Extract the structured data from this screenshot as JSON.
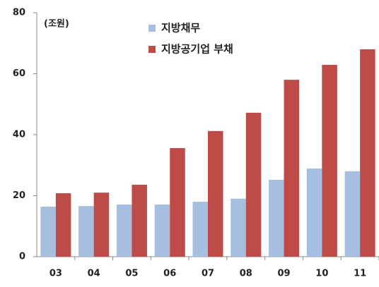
{
  "chart_data": {
    "type": "bar",
    "annotation": "(조원)",
    "categories": [
      "03",
      "04",
      "05",
      "06",
      "07",
      "08",
      "09",
      "10",
      "11"
    ],
    "series": [
      {
        "name": "지방채무",
        "color": "#a6bedf",
        "values": [
          16.4,
          16.6,
          17.1,
          17.1,
          18.0,
          19.0,
          25.2,
          28.9,
          28.0
        ]
      },
      {
        "name": "지방공기업 부채",
        "color": "#be4b48",
        "values": [
          20.8,
          21.0,
          23.6,
          35.6,
          41.2,
          47.2,
          58.0,
          62.9,
          68.0
        ]
      }
    ],
    "ylim": [
      0,
      80
    ],
    "yticks": [
      0,
      20,
      40,
      60,
      80
    ],
    "grid": false
  }
}
